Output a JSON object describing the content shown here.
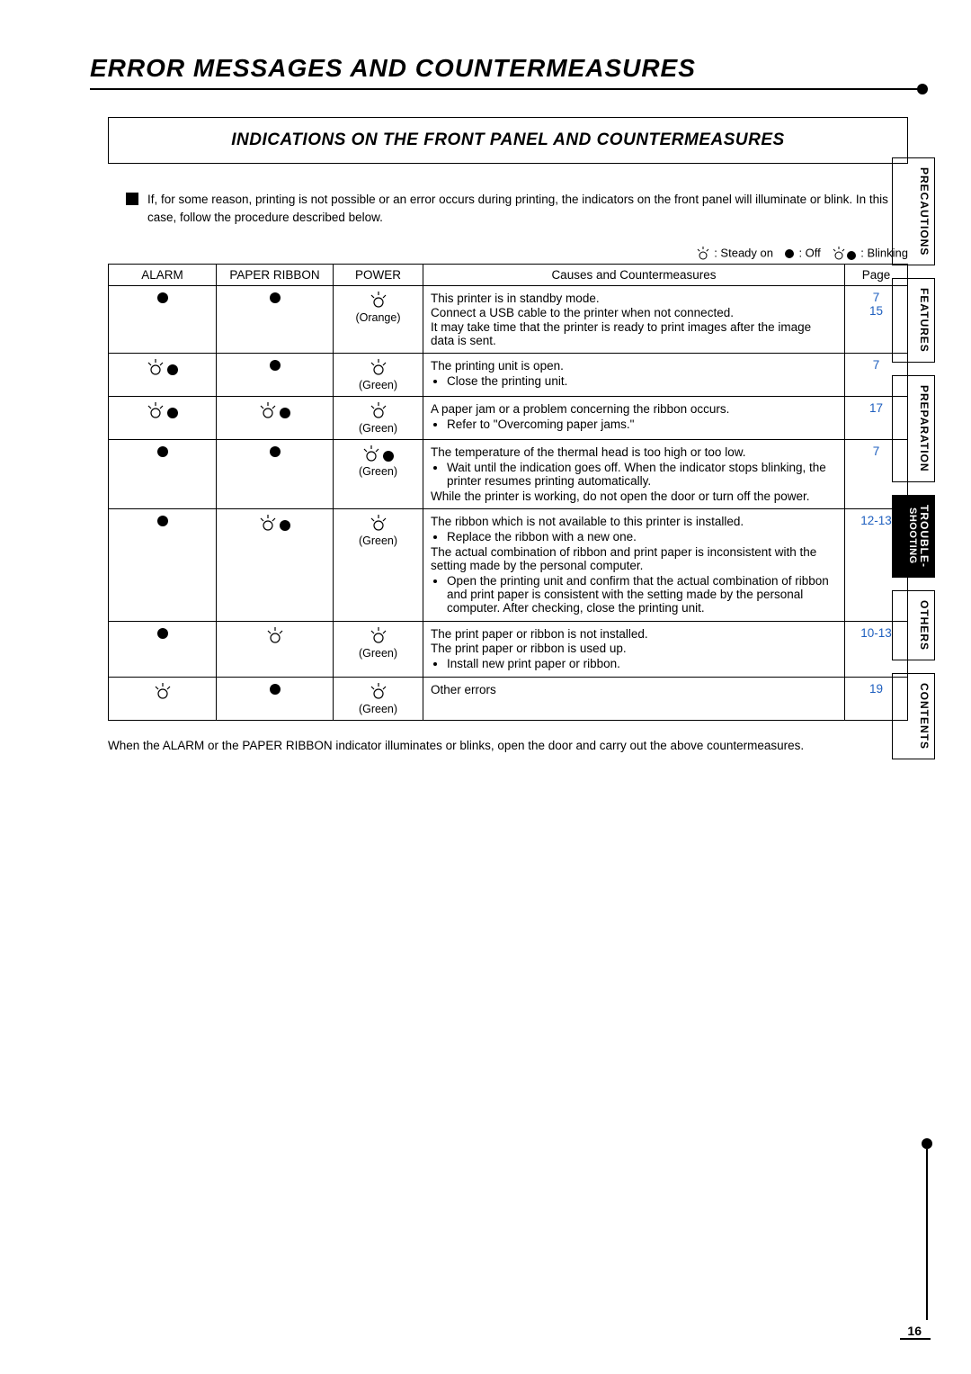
{
  "page": {
    "title": "ERROR MESSAGES AND COUNTERMEASURES",
    "section_heading": "INDICATIONS ON THE FRONT PANEL AND COUNTERMEASURES",
    "intro": "If, for some reason, printing is not possible or an error occurs during printing, the indicators on the front panel will illuminate or blink. In this case, follow the procedure described below.",
    "footnote": "When the ALARM or the PAPER RIBBON indicator illuminates or blinks, open the door and carry out the above countermeasures.",
    "page_number": "16"
  },
  "legend": {
    "steady": ": Steady on",
    "off": ": Off",
    "blinking": ": Blinking"
  },
  "table": {
    "headers": {
      "alarm": "ALARM",
      "paper": "PAPER RIBBON",
      "power": "POWER",
      "causes": "Causes and Countermeasures",
      "page": "Page"
    },
    "power_labels": {
      "orange": "(Orange)",
      "green": "(Green)"
    },
    "rows": [
      {
        "alarm": "off",
        "paper": "off",
        "power": "steady",
        "power_color": "orange",
        "cause_html": "<p>This printer is in standby mode.</p><p>Connect a USB cable to the printer when not connected.</p><p>It may take time that the printer is ready to print images after the image data is sent.</p>",
        "pages": [
          "7",
          "15"
        ]
      },
      {
        "alarm": "blinking",
        "paper": "off",
        "power": "steady",
        "power_color": "green",
        "cause_html": "<p>The printing unit is open.</p><ul><li>Close the printing unit.</li></ul>",
        "pages": [
          "7"
        ]
      },
      {
        "alarm": "blinking",
        "paper": "blinking",
        "power": "steady",
        "power_color": "green",
        "cause_html": "<p>A paper jam or a problem concerning the ribbon occurs.</p><ul><li>Refer to \"Overcoming paper jams.\"</li></ul>",
        "pages": [
          "17"
        ]
      },
      {
        "alarm": "off",
        "paper": "off",
        "power": "blinking",
        "power_color": "green",
        "cause_html": "<p>The temperature of the thermal head is too high or too low.</p><ul><li>Wait until the indication goes off. When the indicator stops blinking, the printer resumes printing automatically.</li></ul><p>While the printer is working, do not open the door or turn off the power.</p>",
        "pages": [
          "7"
        ]
      },
      {
        "alarm": "off",
        "paper": "blinking",
        "power": "steady",
        "power_color": "green",
        "cause_html": "<p>The ribbon which is not available to this printer is installed.</p><ul><li>Replace the ribbon with a new one.</li></ul><p>The actual combination of ribbon and print paper is inconsistent with the setting made by the personal computer.</p><ul><li>Open the printing unit and confirm that the actual combination of ribbon and print paper is consistent with the setting made by the personal computer. After checking, close the printing unit.</li></ul>",
        "pages": [
          "12-13"
        ]
      },
      {
        "alarm": "off",
        "paper": "steady",
        "power": "steady",
        "power_color": "green",
        "cause_html": "<p>The print paper or ribbon is not installed.</p><p>The print paper or ribbon is used up.</p><ul><li>Install new print paper or ribbon.</li></ul>",
        "pages": [
          "10-13"
        ]
      },
      {
        "alarm": "steady",
        "paper": "off",
        "power": "steady",
        "power_color": "green",
        "cause_html": "<p>Other errors</p>",
        "pages": [
          "19"
        ]
      }
    ]
  },
  "tabs": [
    {
      "label": "PRECAUTIONS",
      "active": false
    },
    {
      "label": "FEATURES",
      "active": false
    },
    {
      "label": "PREPARATION",
      "active": false
    },
    {
      "label": "TROUBLE-",
      "sub": "SHOOTING",
      "active": true
    },
    {
      "label": "OTHERS",
      "active": false
    },
    {
      "label": "CONTENTS",
      "active": false
    }
  ],
  "colors": {
    "link": "#1e5fbf",
    "text": "#000000",
    "background": "#ffffff"
  }
}
